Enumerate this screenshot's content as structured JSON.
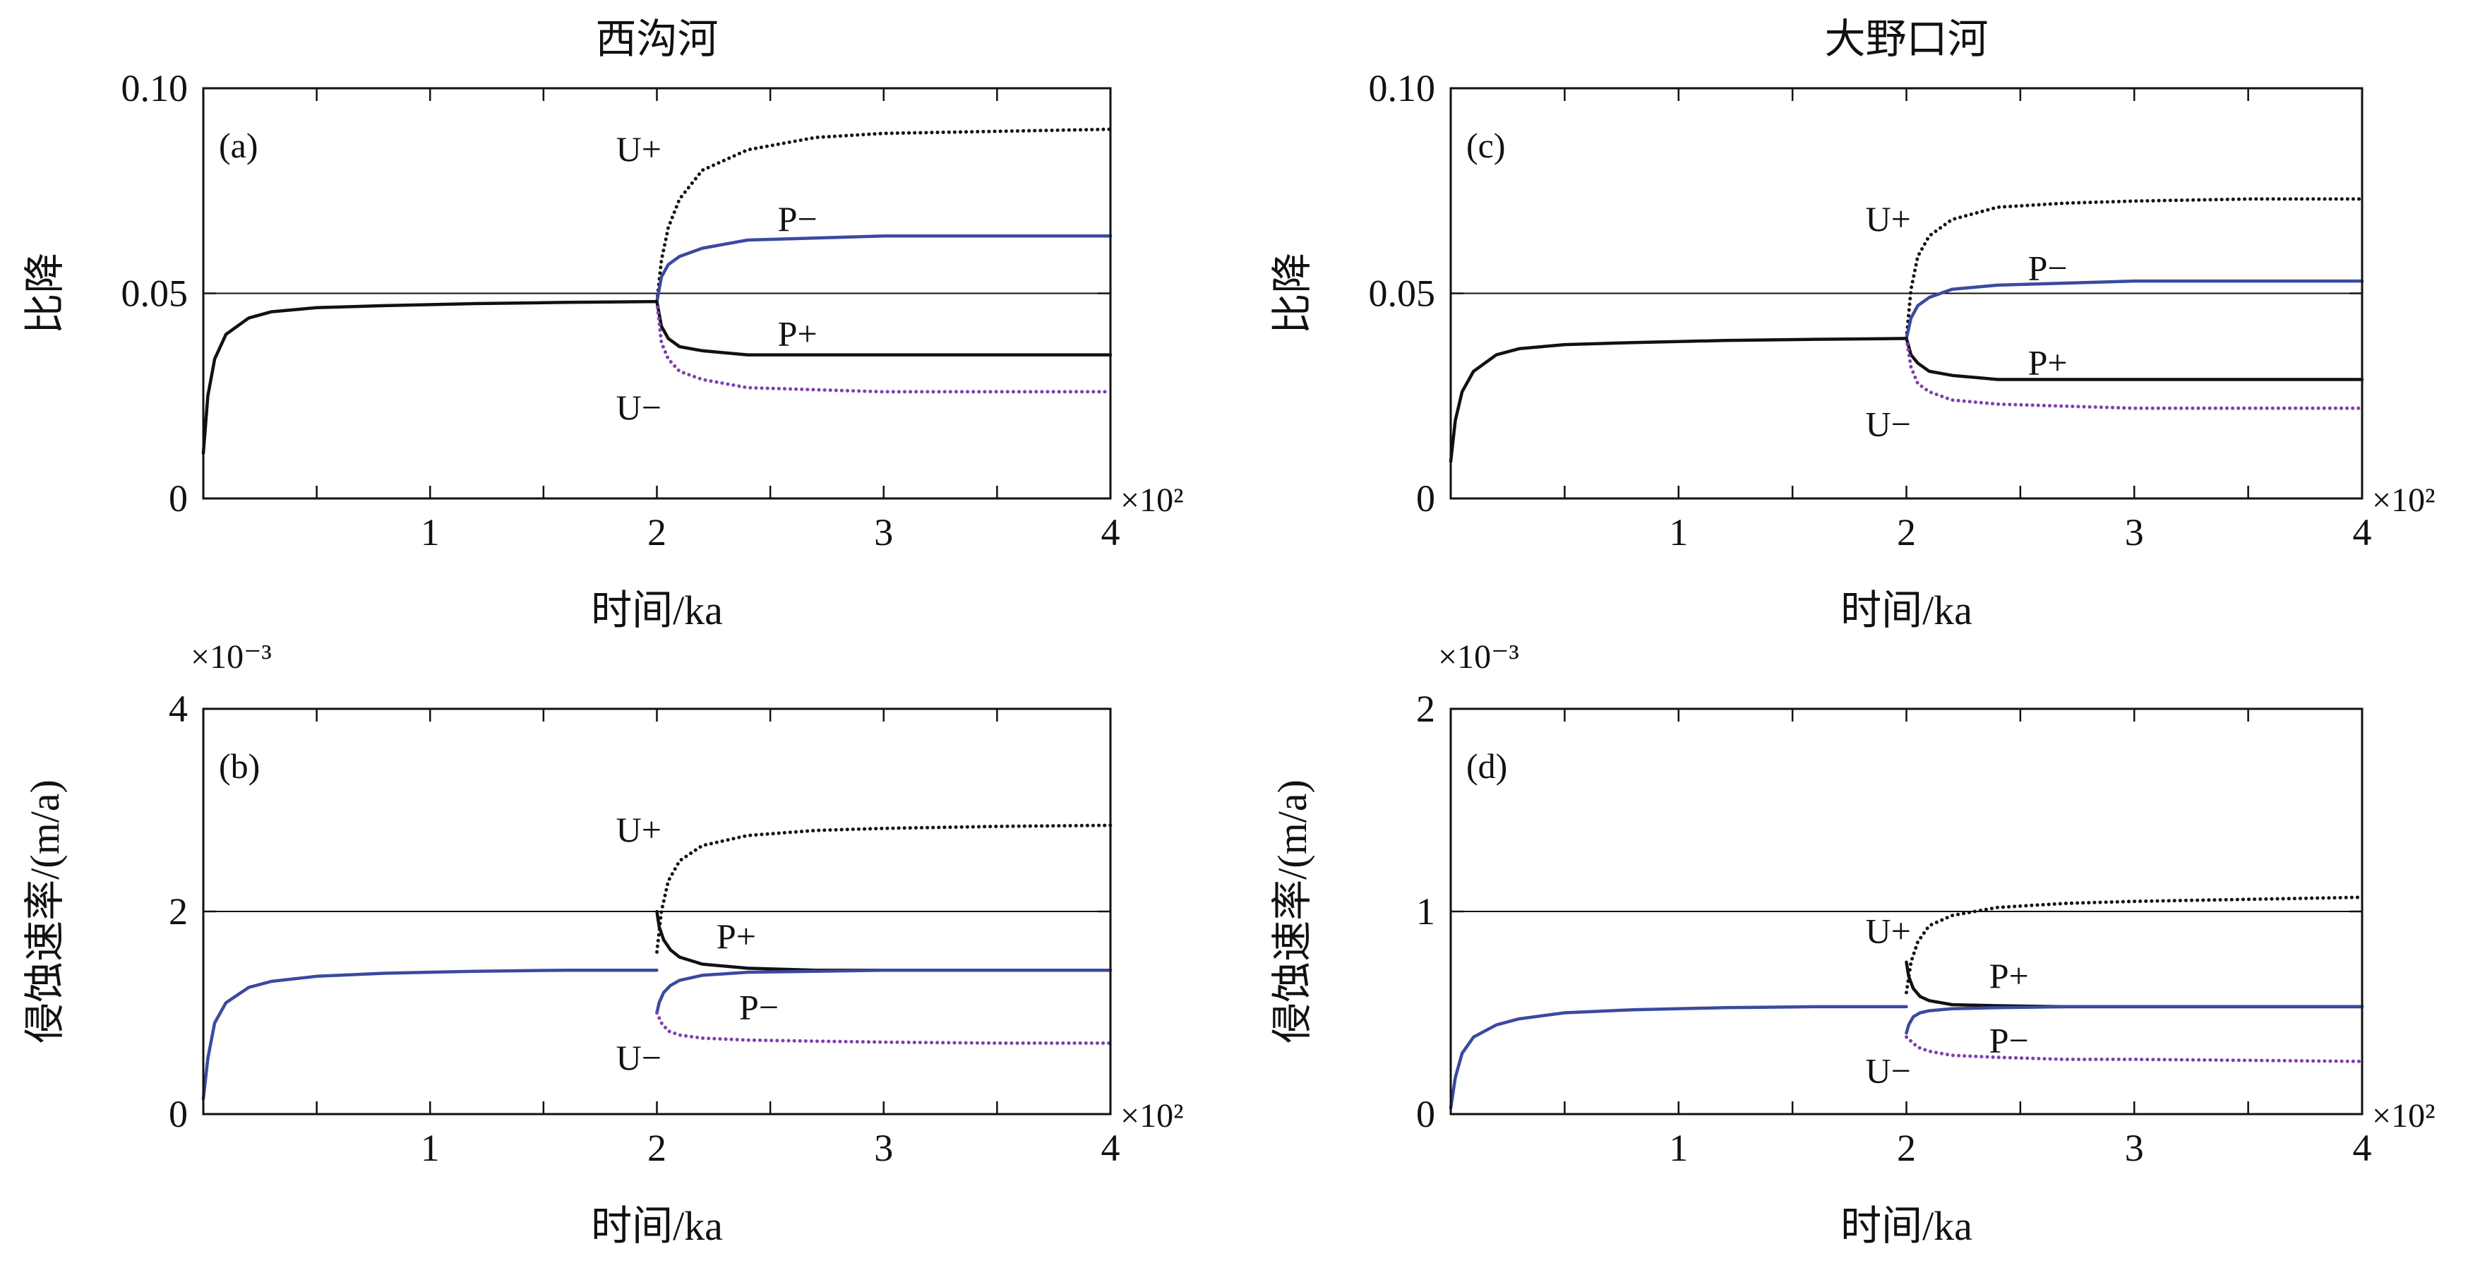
{
  "chart_data": [
    {
      "id": "a",
      "type": "line",
      "title": "西沟河",
      "panel_tag": "(a)",
      "xlabel": "时间/ka",
      "ylabel": "比降",
      "x_multiplier": "×10²",
      "y_multiplier": "",
      "xlim": [
        0,
        4
      ],
      "ylim": [
        0,
        0.1
      ],
      "xticks": [
        0,
        1,
        2,
        3,
        4
      ],
      "xtick_labels": [
        "",
        "1",
        "2",
        "3",
        "4"
      ],
      "yticks": [
        0,
        0.05,
        0.1
      ],
      "ytick_labels": [
        "0",
        "0.05",
        "0.10"
      ],
      "reference_line": 0.05,
      "grid": false,
      "series": [
        {
          "name": "U+",
          "style": "dotted",
          "color": "#111111",
          "x": [
            2.0,
            2.02,
            2.05,
            2.1,
            2.2,
            2.4,
            2.7,
            3.0,
            3.5,
            4.0
          ],
          "y": [
            0.048,
            0.058,
            0.066,
            0.073,
            0.08,
            0.085,
            0.088,
            0.089,
            0.0895,
            0.09
          ]
        },
        {
          "name": "P−",
          "style": "solid",
          "color": "#3a4aa0",
          "x": [
            2.0,
            2.02,
            2.05,
            2.1,
            2.2,
            2.4,
            2.7,
            3.0,
            3.5,
            4.0
          ],
          "y": [
            0.048,
            0.054,
            0.057,
            0.059,
            0.061,
            0.063,
            0.0635,
            0.064,
            0.064,
            0.064
          ]
        },
        {
          "name": "P+",
          "style": "solid",
          "color": "#111111",
          "x": [
            2.0,
            2.02,
            2.05,
            2.1,
            2.2,
            2.4,
            2.7,
            3.0,
            3.5,
            4.0
          ],
          "y": [
            0.048,
            0.042,
            0.039,
            0.037,
            0.036,
            0.035,
            0.035,
            0.035,
            0.035,
            0.035
          ]
        },
        {
          "name": "U−",
          "style": "dotted",
          "color": "#8040b0",
          "x": [
            2.0,
            2.02,
            2.05,
            2.1,
            2.2,
            2.4,
            2.7,
            3.0,
            3.5,
            4.0
          ],
          "y": [
            0.048,
            0.038,
            0.034,
            0.031,
            0.029,
            0.027,
            0.0265,
            0.026,
            0.026,
            0.026
          ]
        },
        {
          "name": "",
          "style": "solid",
          "color": "#111111",
          "x": [
            0.0,
            0.02,
            0.05,
            0.1,
            0.2,
            0.3,
            0.5,
            0.8,
            1.2,
            1.6,
            2.0
          ],
          "y": [
            0.011,
            0.025,
            0.034,
            0.04,
            0.044,
            0.0455,
            0.0465,
            0.047,
            0.0475,
            0.0478,
            0.048
          ]
        }
      ],
      "labels": [
        {
          "text": "U+",
          "x": 1.92,
          "y": 0.085
        },
        {
          "text": "P−",
          "x": 2.62,
          "y": 0.068
        },
        {
          "text": "P+",
          "x": 2.62,
          "y": 0.04
        },
        {
          "text": "U−",
          "x": 1.92,
          "y": 0.022
        }
      ]
    },
    {
      "id": "b",
      "type": "line",
      "title": "",
      "panel_tag": "(b)",
      "xlabel": "时间/ka",
      "ylabel": "侵蚀速率/(m/a)",
      "x_multiplier": "×10²",
      "y_multiplier": "×10⁻³",
      "xlim": [
        0,
        4
      ],
      "ylim": [
        0,
        4
      ],
      "xticks": [
        0,
        1,
        2,
        3,
        4
      ],
      "xtick_labels": [
        "",
        "1",
        "2",
        "3",
        "4"
      ],
      "yticks": [
        0,
        2,
        4
      ],
      "ytick_labels": [
        "0",
        "2",
        "4"
      ],
      "reference_line": 2,
      "grid": false,
      "series": [
        {
          "name": "U+",
          "style": "dotted",
          "color": "#111111",
          "x": [
            2.0,
            2.02,
            2.05,
            2.1,
            2.2,
            2.4,
            2.7,
            3.0,
            3.5,
            4.0
          ],
          "y": [
            1.6,
            2.0,
            2.3,
            2.5,
            2.65,
            2.75,
            2.8,
            2.82,
            2.84,
            2.85
          ]
        },
        {
          "name": "P+",
          "style": "solid",
          "color": "#111111",
          "x": [
            2.0,
            2.01,
            2.03,
            2.06,
            2.1,
            2.2,
            2.4,
            2.7,
            3.0,
            4.0
          ],
          "y": [
            2.0,
            1.85,
            1.72,
            1.62,
            1.55,
            1.48,
            1.44,
            1.42,
            1.42,
            1.42
          ]
        },
        {
          "name": "P−",
          "style": "solid",
          "color": "#3a4aa0",
          "x": [
            2.0,
            2.01,
            2.03,
            2.06,
            2.1,
            2.2,
            2.4,
            2.7,
            3.0,
            4.0
          ],
          "y": [
            1.0,
            1.1,
            1.2,
            1.27,
            1.32,
            1.37,
            1.4,
            1.41,
            1.42,
            1.42
          ]
        },
        {
          "name": "U−",
          "style": "dotted",
          "color": "#8040b0",
          "x": [
            2.0,
            2.02,
            2.05,
            2.1,
            2.2,
            2.4,
            2.7,
            3.0,
            3.5,
            4.0
          ],
          "y": [
            1.0,
            0.9,
            0.82,
            0.78,
            0.75,
            0.73,
            0.72,
            0.71,
            0.7,
            0.7
          ]
        },
        {
          "name": "",
          "style": "solid",
          "color": "#3a4aa0",
          "x": [
            0.0,
            0.02,
            0.05,
            0.1,
            0.2,
            0.3,
            0.5,
            0.8,
            1.2,
            1.6,
            2.0
          ],
          "y": [
            0.15,
            0.55,
            0.9,
            1.1,
            1.25,
            1.31,
            1.36,
            1.39,
            1.41,
            1.42,
            1.42
          ]
        }
      ],
      "labels": [
        {
          "text": "U+",
          "x": 1.92,
          "y": 2.8
        },
        {
          "text": "P+",
          "x": 2.35,
          "y": 1.75
        },
        {
          "text": "P−",
          "x": 2.45,
          "y": 1.05
        },
        {
          "text": "U−",
          "x": 1.92,
          "y": 0.55
        }
      ]
    },
    {
      "id": "c",
      "type": "line",
      "title": "大野口河",
      "panel_tag": "(c)",
      "xlabel": "时间/ka",
      "ylabel": "比降",
      "x_multiplier": "×10²",
      "y_multiplier": "",
      "xlim": [
        0,
        4
      ],
      "ylim": [
        0,
        0.1
      ],
      "xticks": [
        0,
        1,
        2,
        3,
        4
      ],
      "xtick_labels": [
        "",
        "1",
        "2",
        "3",
        "4"
      ],
      "yticks": [
        0,
        0.05,
        0.1
      ],
      "ytick_labels": [
        "0",
        "0.05",
        "0.10"
      ],
      "reference_line": 0.05,
      "grid": false,
      "series": [
        {
          "name": "U+",
          "style": "dotted",
          "color": "#111111",
          "x": [
            2.0,
            2.02,
            2.05,
            2.1,
            2.2,
            2.4,
            2.7,
            3.0,
            3.5,
            4.0
          ],
          "y": [
            0.039,
            0.051,
            0.059,
            0.064,
            0.068,
            0.071,
            0.072,
            0.0725,
            0.073,
            0.073
          ]
        },
        {
          "name": "P−",
          "style": "solid",
          "color": "#3a4aa0",
          "x": [
            2.0,
            2.02,
            2.05,
            2.1,
            2.2,
            2.4,
            2.7,
            3.0,
            3.5,
            4.0
          ],
          "y": [
            0.039,
            0.044,
            0.047,
            0.049,
            0.051,
            0.052,
            0.0525,
            0.053,
            0.053,
            0.053
          ]
        },
        {
          "name": "P+",
          "style": "solid",
          "color": "#111111",
          "x": [
            2.0,
            2.02,
            2.05,
            2.1,
            2.2,
            2.4,
            2.7,
            3.0,
            3.5,
            4.0
          ],
          "y": [
            0.039,
            0.035,
            0.033,
            0.031,
            0.03,
            0.029,
            0.029,
            0.029,
            0.029,
            0.029
          ]
        },
        {
          "name": "U−",
          "style": "dotted",
          "color": "#8040b0",
          "x": [
            2.0,
            2.02,
            2.05,
            2.1,
            2.2,
            2.4,
            2.7,
            3.0,
            3.5,
            4.0
          ],
          "y": [
            0.039,
            0.032,
            0.028,
            0.026,
            0.024,
            0.023,
            0.0225,
            0.022,
            0.022,
            0.022
          ]
        },
        {
          "name": "",
          "style": "solid",
          "color": "#111111",
          "x": [
            0.0,
            0.02,
            0.05,
            0.1,
            0.2,
            0.3,
            0.5,
            0.8,
            1.2,
            1.6,
            2.0
          ],
          "y": [
            0.009,
            0.019,
            0.026,
            0.031,
            0.035,
            0.0365,
            0.0375,
            0.038,
            0.0385,
            0.0388,
            0.039
          ]
        }
      ],
      "labels": [
        {
          "text": "U+",
          "x": 1.92,
          "y": 0.068
        },
        {
          "text": "P−",
          "x": 2.62,
          "y": 0.056
        },
        {
          "text": "P+",
          "x": 2.62,
          "y": 0.033
        },
        {
          "text": "U−",
          "x": 1.92,
          "y": 0.018
        }
      ]
    },
    {
      "id": "d",
      "type": "line",
      "title": "",
      "panel_tag": "(d)",
      "xlabel": "时间/ka",
      "ylabel": "侵蚀速率/(m/a)",
      "x_multiplier": "×10²",
      "y_multiplier": "×10⁻³",
      "xlim": [
        0,
        4
      ],
      "ylim": [
        0,
        2
      ],
      "xticks": [
        0,
        1,
        2,
        3,
        4
      ],
      "xtick_labels": [
        "",
        "1",
        "2",
        "3",
        "4"
      ],
      "yticks": [
        0,
        1,
        2
      ],
      "ytick_labels": [
        "0",
        "1",
        "2"
      ],
      "reference_line": 1,
      "grid": false,
      "series": [
        {
          "name": "U+",
          "style": "dotted",
          "color": "#111111",
          "x": [
            2.0,
            2.02,
            2.05,
            2.1,
            2.2,
            2.4,
            2.7,
            3.0,
            3.5,
            4.0
          ],
          "y": [
            0.6,
            0.75,
            0.85,
            0.93,
            0.98,
            1.02,
            1.04,
            1.05,
            1.06,
            1.07
          ]
        },
        {
          "name": "P+",
          "style": "solid",
          "color": "#111111",
          "x": [
            2.0,
            2.01,
            2.03,
            2.06,
            2.1,
            2.2,
            2.4,
            2.7,
            3.0,
            4.0
          ],
          "y": [
            0.75,
            0.68,
            0.62,
            0.58,
            0.56,
            0.54,
            0.535,
            0.53,
            0.53,
            0.53
          ]
        },
        {
          "name": "P−",
          "style": "solid",
          "color": "#3a4aa0",
          "x": [
            2.0,
            2.01,
            2.03,
            2.06,
            2.1,
            2.2,
            2.4,
            2.7,
            3.0,
            4.0
          ],
          "y": [
            0.4,
            0.44,
            0.48,
            0.5,
            0.51,
            0.52,
            0.525,
            0.53,
            0.53,
            0.53
          ]
        },
        {
          "name": "U−",
          "style": "dotted",
          "color": "#8040b0",
          "x": [
            2.0,
            2.02,
            2.05,
            2.1,
            2.2,
            2.4,
            2.7,
            3.0,
            3.5,
            4.0
          ],
          "y": [
            0.38,
            0.36,
            0.33,
            0.31,
            0.29,
            0.28,
            0.27,
            0.27,
            0.265,
            0.26
          ]
        },
        {
          "name": "",
          "style": "solid",
          "color": "#3a4aa0",
          "x": [
            0.0,
            0.02,
            0.05,
            0.1,
            0.2,
            0.3,
            0.5,
            0.8,
            1.2,
            1.6,
            2.0
          ],
          "y": [
            0.03,
            0.18,
            0.3,
            0.38,
            0.44,
            0.47,
            0.5,
            0.515,
            0.525,
            0.53,
            0.53
          ]
        }
      ],
      "labels": [
        {
          "text": "U+",
          "x": 1.92,
          "y": 0.9
        },
        {
          "text": "P+",
          "x": 2.45,
          "y": 0.68
        },
        {
          "text": "U−",
          "x": 1.92,
          "y": 0.21
        },
        {
          "text": "P−",
          "x": 2.45,
          "y": 0.36
        }
      ]
    }
  ]
}
